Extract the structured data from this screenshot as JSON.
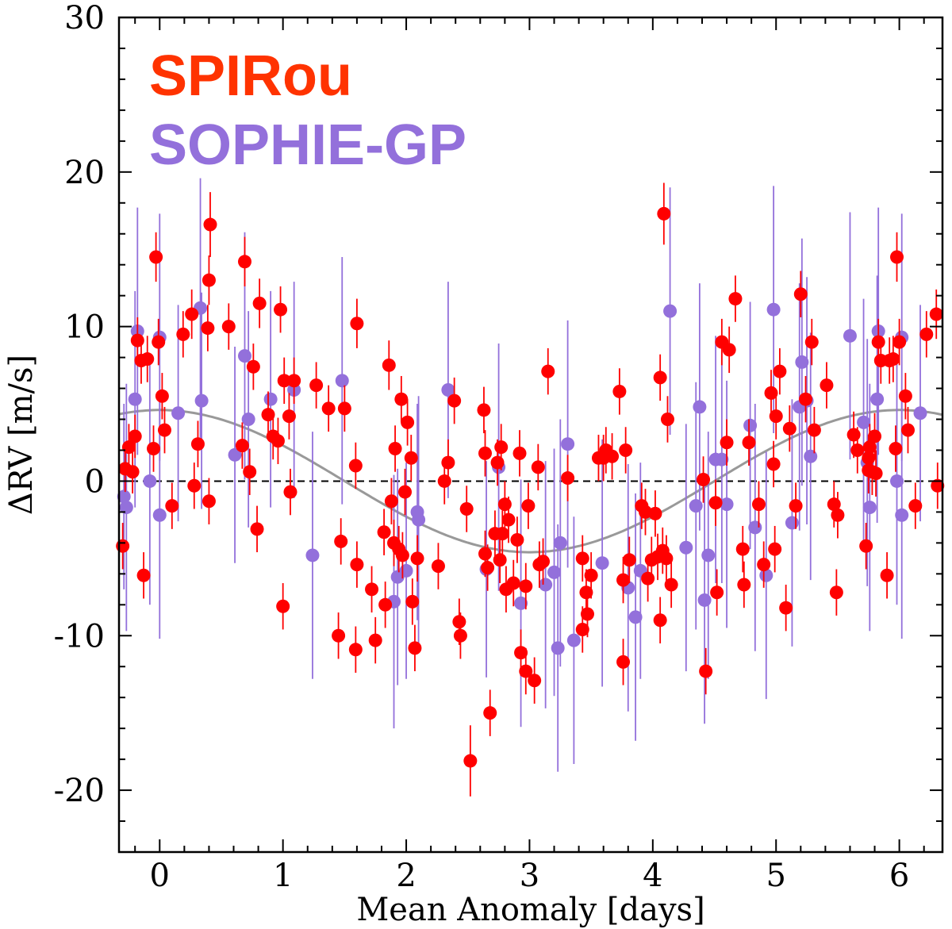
{
  "chart_data": {
    "type": "scatter",
    "title": "",
    "xlabel": "Mean Anomaly [days]",
    "ylabel": "ΔRV [m/s]",
    "xlim": [
      -0.33,
      6.35
    ],
    "ylim": [
      -24,
      30
    ],
    "xticks": [
      0,
      1,
      2,
      3,
      4,
      5,
      6
    ],
    "xtick_labels": [
      "0",
      "1",
      "2",
      "3",
      "4",
      "5",
      "6"
    ],
    "yticks": [
      -20,
      -10,
      0,
      10,
      20,
      30
    ],
    "ytick_labels": [
      "-20",
      "-10",
      "0",
      "10",
      "20",
      "30"
    ],
    "zero_line": 0,
    "model": {
      "name": "sinusoid",
      "amplitude": 4.6,
      "period": 6.0,
      "peak_phase": 0.0,
      "color": "#999999"
    },
    "legend": [
      {
        "label": "SPIRou",
        "color": "#ff3300"
      },
      {
        "label": "SOPHIE-GP",
        "color": "#9370db"
      }
    ],
    "series": [
      {
        "name": "SPIRou",
        "color": "#ff0000",
        "points": [
          [
            -0.3,
            -4.2,
            1.5
          ],
          [
            -0.28,
            0.8,
            1.5
          ],
          [
            -0.25,
            2.2,
            1.5
          ],
          [
            -0.22,
            0.6,
            1.4
          ],
          [
            -0.2,
            2.9,
            1.4
          ],
          [
            -0.18,
            9.1,
            1.5
          ],
          [
            -0.15,
            7.8,
            1.5
          ],
          [
            -0.13,
            -6.1,
            1.5
          ],
          [
            -0.1,
            7.9,
            1.5
          ],
          [
            -0.05,
            2.1,
            1.5
          ],
          [
            -0.03,
            14.5,
            1.6
          ],
          [
            -0.01,
            9.0,
            1.5
          ],
          [
            0.02,
            5.5,
            1.5
          ],
          [
            0.04,
            3.3,
            1.5
          ],
          [
            0.1,
            -1.6,
            1.5
          ],
          [
            0.19,
            9.5,
            1.5
          ],
          [
            0.26,
            10.8,
            1.6
          ],
          [
            0.28,
            -0.3,
            1.5
          ],
          [
            0.31,
            2.4,
            1.5
          ],
          [
            0.39,
            9.9,
            1.5
          ],
          [
            0.4,
            13.0,
            1.6
          ],
          [
            0.41,
            16.6,
            2.1
          ],
          [
            0.4,
            -1.3,
            1.5
          ],
          [
            0.56,
            10.0,
            1.5
          ],
          [
            0.67,
            2.3,
            1.5
          ],
          [
            0.69,
            14.2,
            1.6
          ],
          [
            0.73,
            0.6,
            1.5
          ],
          [
            0.76,
            7.4,
            1.5
          ],
          [
            0.79,
            -3.1,
            1.5
          ],
          [
            0.81,
            11.5,
            1.6
          ],
          [
            0.88,
            4.3,
            1.5
          ],
          [
            0.92,
            2.9,
            1.5
          ],
          [
            0.96,
            2.6,
            1.5
          ],
          [
            0.98,
            11.1,
            1.5
          ],
          [
            1.0,
            -8.1,
            1.5
          ],
          [
            1.01,
            6.5,
            1.5
          ],
          [
            1.05,
            4.2,
            1.5
          ],
          [
            1.06,
            -0.7,
            1.5
          ],
          [
            1.09,
            6.5,
            1.5
          ],
          [
            1.27,
            6.2,
            1.5
          ],
          [
            1.37,
            4.7,
            1.5
          ],
          [
            1.45,
            -10.0,
            1.5
          ],
          [
            1.47,
            -3.9,
            1.5
          ],
          [
            1.5,
            4.7,
            1.5
          ],
          [
            1.59,
            1.0,
            1.5
          ],
          [
            1.59,
            -10.9,
            1.5
          ],
          [
            1.6,
            -5.4,
            1.5
          ],
          [
            1.6,
            10.2,
            1.6
          ],
          [
            1.72,
            -7.0,
            1.5
          ],
          [
            1.75,
            -10.3,
            1.5
          ],
          [
            1.82,
            -3.3,
            1.5
          ],
          [
            1.83,
            -8.0,
            1.5
          ],
          [
            1.86,
            7.5,
            1.6
          ],
          [
            1.88,
            -1.3,
            1.5
          ],
          [
            1.9,
            -4.0,
            1.5
          ],
          [
            1.91,
            2.1,
            1.5
          ],
          [
            1.94,
            -4.4,
            1.5
          ],
          [
            1.96,
            5.3,
            1.5
          ],
          [
            1.97,
            -4.8,
            1.5
          ],
          [
            1.99,
            -0.7,
            1.5
          ],
          [
            2.01,
            3.8,
            1.5
          ],
          [
            2.04,
            1.5,
            1.5
          ],
          [
            2.05,
            -7.8,
            1.5
          ],
          [
            2.07,
            -10.8,
            1.5
          ],
          [
            2.09,
            -5.0,
            1.5
          ],
          [
            2.26,
            -5.5,
            1.5
          ],
          [
            2.31,
            0.0,
            1.5
          ],
          [
            2.34,
            1.2,
            1.5
          ],
          [
            2.39,
            5.2,
            1.5
          ],
          [
            2.43,
            -9.1,
            1.5
          ],
          [
            2.44,
            -10.0,
            1.5
          ],
          [
            2.49,
            -1.8,
            1.5
          ],
          [
            2.52,
            -18.1,
            2.3
          ],
          [
            2.63,
            4.6,
            1.5
          ],
          [
            2.64,
            -4.7,
            1.5
          ],
          [
            2.64,
            1.8,
            1.5
          ],
          [
            2.66,
            -5.6,
            1.5
          ],
          [
            2.68,
            -15.0,
            1.5
          ],
          [
            2.72,
            -3.4,
            1.5
          ],
          [
            2.74,
            1.2,
            1.5
          ],
          [
            2.76,
            -5.1,
            1.5
          ],
          [
            2.77,
            2.2,
            1.5
          ],
          [
            2.78,
            -3.4,
            1.5
          ],
          [
            2.8,
            -1.5,
            1.5
          ],
          [
            2.81,
            -7.0,
            1.5
          ],
          [
            2.83,
            -2.5,
            1.5
          ],
          [
            2.87,
            -6.6,
            1.5
          ],
          [
            2.9,
            -3.8,
            1.5
          ],
          [
            2.92,
            1.8,
            1.5
          ],
          [
            2.93,
            -11.1,
            1.5
          ],
          [
            2.97,
            -6.8,
            1.5
          ],
          [
            2.97,
            -12.3,
            1.5
          ],
          [
            2.99,
            -1.6,
            1.5
          ],
          [
            3.04,
            -12.9,
            1.5
          ],
          [
            3.07,
            0.9,
            1.5
          ],
          [
            3.08,
            -5.4,
            1.5
          ],
          [
            3.11,
            -5.2,
            1.5
          ],
          [
            3.15,
            7.1,
            1.5
          ],
          [
            3.31,
            0.2,
            1.5
          ],
          [
            3.43,
            -5.0,
            1.5
          ],
          [
            3.43,
            -9.6,
            1.5
          ],
          [
            3.46,
            -7.2,
            1.5
          ],
          [
            3.47,
            -8.6,
            1.5
          ],
          [
            3.5,
            -6.1,
            1.5
          ],
          [
            3.56,
            1.5,
            1.5
          ],
          [
            3.6,
            1.5,
            1.5
          ],
          [
            3.62,
            2.0,
            1.5
          ],
          [
            3.67,
            1.6,
            1.5
          ],
          [
            3.73,
            5.8,
            1.5
          ],
          [
            3.76,
            -6.4,
            1.5
          ],
          [
            3.76,
            -11.7,
            1.5
          ],
          [
            3.78,
            2.0,
            1.5
          ],
          [
            3.81,
            -5.1,
            1.5
          ],
          [
            3.91,
            -1.6,
            1.5
          ],
          [
            3.94,
            -2.0,
            1.5
          ],
          [
            3.96,
            -6.3,
            1.5
          ],
          [
            3.99,
            -5.1,
            1.5
          ],
          [
            4.02,
            -2.1,
            1.5
          ],
          [
            4.04,
            -4.9,
            1.5
          ],
          [
            4.06,
            6.7,
            1.5
          ],
          [
            4.06,
            -9.0,
            1.5
          ],
          [
            4.08,
            -4.5,
            1.5
          ],
          [
            4.09,
            17.3,
            2.0
          ],
          [
            4.11,
            -5.0,
            1.5
          ],
          [
            4.12,
            4.0,
            1.5
          ],
          [
            4.15,
            -6.7,
            1.5
          ],
          [
            4.41,
            0.1,
            1.5
          ],
          [
            4.43,
            -12.3,
            1.5
          ],
          [
            4.51,
            -1.4,
            1.5
          ],
          [
            4.52,
            -7.2,
            1.5
          ],
          [
            4.56,
            9.0,
            1.5
          ],
          [
            4.6,
            2.5,
            1.5
          ],
          [
            4.62,
            8.5,
            1.5
          ],
          [
            4.67,
            11.8,
            1.5
          ],
          [
            4.73,
            -4.4,
            1.5
          ],
          [
            4.74,
            -6.7,
            1.5
          ],
          [
            4.78,
            2.5,
            1.5
          ],
          [
            4.86,
            -1.5,
            1.5
          ],
          [
            4.9,
            -5.4,
            1.5
          ],
          [
            4.96,
            5.7,
            1.5
          ],
          [
            4.98,
            1.1,
            1.5
          ],
          [
            4.99,
            -4.4,
            1.5
          ],
          [
            5.0,
            4.2,
            1.5
          ],
          [
            5.03,
            7.1,
            1.5
          ],
          [
            5.08,
            -8.2,
            1.5
          ],
          [
            5.11,
            3.4,
            1.5
          ],
          [
            5.16,
            -1.6,
            1.5
          ],
          [
            5.2,
            12.1,
            1.5
          ],
          [
            5.24,
            5.3,
            1.5
          ],
          [
            5.29,
            9.0,
            1.5
          ],
          [
            5.31,
            3.3,
            1.5
          ],
          [
            5.41,
            6.2,
            1.5
          ],
          [
            5.47,
            -1.5,
            1.5
          ],
          [
            5.49,
            -7.2,
            1.5
          ],
          [
            5.5,
            -2.2,
            1.5
          ],
          [
            5.63,
            3.0,
            1.5
          ],
          [
            5.66,
            2.0,
            1.5
          ],
          [
            5.73,
            -4.2,
            1.5
          ],
          [
            5.75,
            1.5,
            1.5
          ],
          [
            5.75,
            0.7,
            1.5
          ],
          [
            5.76,
            2.2,
            1.5
          ],
          [
            5.78,
            0.6,
            1.5
          ],
          [
            5.8,
            2.9,
            1.5
          ],
          [
            5.81,
            0.5,
            1.5
          ],
          [
            5.83,
            9.0,
            1.5
          ],
          [
            5.85,
            7.8,
            1.5
          ],
          [
            5.9,
            -6.1,
            1.5
          ],
          [
            5.92,
            7.8,
            1.5
          ],
          [
            5.95,
            7.9,
            1.5
          ],
          [
            5.97,
            2.1,
            1.5
          ],
          [
            5.98,
            14.5,
            1.6
          ],
          [
            6.0,
            9.0,
            1.5
          ],
          [
            6.05,
            5.5,
            1.5
          ],
          [
            6.07,
            3.3,
            1.5
          ],
          [
            6.13,
            -1.6,
            1.5
          ],
          [
            6.22,
            9.5,
            1.5
          ],
          [
            6.3,
            10.8,
            1.6
          ],
          [
            6.31,
            -0.3,
            1.5
          ],
          [
            6.34,
            2.4,
            1.5
          ]
        ]
      },
      {
        "name": "SOPHIE-GP",
        "color": "#9370db",
        "points": [
          [
            -0.32,
            3.8,
            6.0
          ],
          [
            -0.29,
            -1.0,
            6.0
          ],
          [
            -0.27,
            -1.7,
            8.0
          ],
          [
            -0.2,
            5.3,
            7.0
          ],
          [
            -0.18,
            9.7,
            8.0
          ],
          [
            -0.08,
            0.0,
            8.0
          ],
          [
            0.0,
            -2.2,
            8.0
          ],
          [
            0.0,
            9.3,
            8.0
          ],
          [
            0.15,
            4.4,
            7.0
          ],
          [
            0.33,
            11.2,
            8.4
          ],
          [
            0.34,
            5.2,
            7.0
          ],
          [
            0.61,
            1.7,
            7.0
          ],
          [
            0.69,
            8.1,
            8.0
          ],
          [
            0.72,
            4.0,
            7.0
          ],
          [
            0.9,
            5.3,
            7.0
          ],
          [
            1.09,
            5.9,
            7.0
          ],
          [
            1.24,
            -4.8,
            8.0
          ],
          [
            1.48,
            6.5,
            8.0
          ],
          [
            1.9,
            -7.8,
            8.2
          ],
          [
            1.93,
            -6.2,
            7.0
          ],
          [
            2.0,
            -5.8,
            7.0
          ],
          [
            2.09,
            -2.0,
            7.0
          ],
          [
            2.1,
            -2.5,
            8.0
          ],
          [
            2.34,
            5.9,
            7.0
          ],
          [
            2.65,
            -5.7,
            7.0
          ],
          [
            2.75,
            0.9,
            8.0
          ],
          [
            2.93,
            -7.9,
            8.0
          ],
          [
            3.13,
            -6.7,
            8.0
          ],
          [
            3.2,
            -5.9,
            8.0
          ],
          [
            3.25,
            -4.0,
            8.0
          ],
          [
            3.23,
            -10.8,
            8.0
          ],
          [
            3.31,
            2.4,
            8.0
          ],
          [
            3.36,
            -10.3,
            8.0
          ],
          [
            3.59,
            -5.3,
            8.0
          ],
          [
            3.8,
            -6.9,
            8.0
          ],
          [
            3.86,
            -8.8,
            8.0
          ],
          [
            3.9,
            -5.8,
            7.0
          ],
          [
            4.14,
            11.0,
            8.0
          ],
          [
            4.27,
            -4.3,
            8.0
          ],
          [
            4.35,
            -1.6,
            8.0
          ],
          [
            4.38,
            4.8,
            8.0
          ],
          [
            4.42,
            -7.7,
            8.0
          ],
          [
            4.45,
            -4.8,
            8.0
          ],
          [
            4.51,
            1.4,
            8.0
          ],
          [
            4.56,
            1.4,
            8.0
          ],
          [
            4.6,
            -1.5,
            8.0
          ],
          [
            4.79,
            3.6,
            8.0
          ],
          [
            4.83,
            -3.0,
            8.0
          ],
          [
            4.92,
            -6.1,
            8.0
          ],
          [
            4.98,
            11.1,
            8.0
          ],
          [
            5.13,
            -2.7,
            8.0
          ],
          [
            5.19,
            4.8,
            8.0
          ],
          [
            5.21,
            7.7,
            8.0
          ],
          [
            5.25,
            5.2,
            8.0
          ],
          [
            5.28,
            1.6,
            8.0
          ],
          [
            5.6,
            9.4,
            8.0
          ],
          [
            5.71,
            3.8,
            8.0
          ],
          [
            5.74,
            1.2,
            8.0
          ],
          [
            5.76,
            -1.7,
            8.0
          ],
          [
            5.82,
            5.3,
            8.0
          ],
          [
            5.83,
            9.7,
            8.0
          ],
          [
            5.98,
            0.0,
            8.0
          ],
          [
            6.02,
            -2.2,
            8.0
          ],
          [
            6.02,
            9.3,
            8.0
          ],
          [
            6.17,
            4.4,
            7.0
          ],
          [
            6.35,
            11.2,
            8.4
          ],
          [
            6.35,
            5.2,
            7.0
          ]
        ]
      }
    ]
  }
}
